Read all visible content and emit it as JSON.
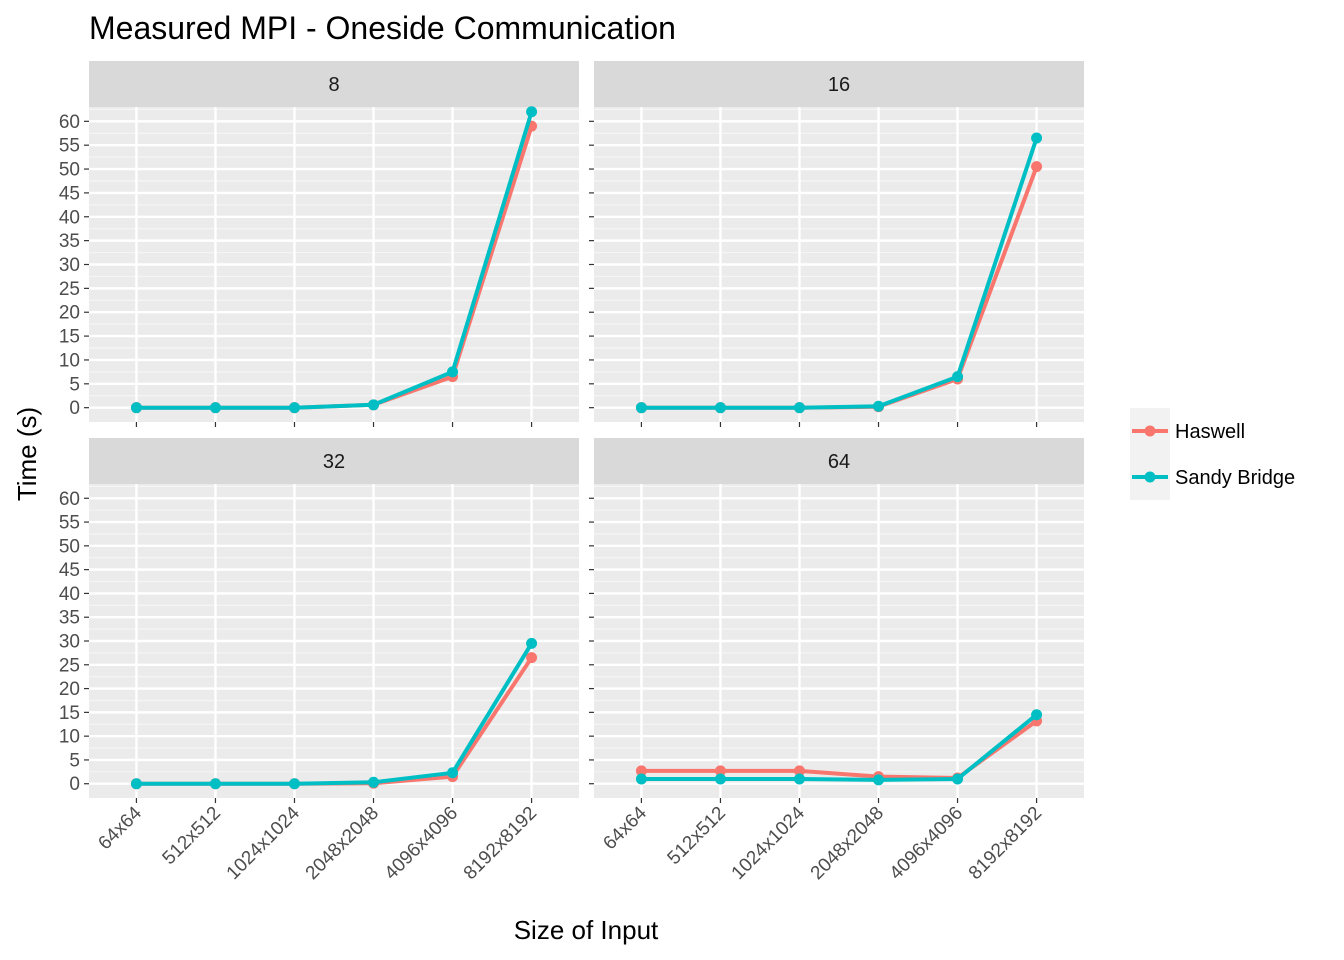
{
  "chart_data": {
    "type": "line",
    "title": "Measured MPI - Oneside Communication",
    "xlabel": "Size of Input",
    "ylabel": "Time (s)",
    "categories": [
      "64x64",
      "512x512",
      "1024x1024",
      "2048x2048",
      "4096x4096",
      "8192x8192"
    ],
    "y_ticks": [
      0,
      5,
      10,
      15,
      20,
      25,
      30,
      35,
      40,
      45,
      50,
      55,
      60
    ],
    "ylim": [
      -3,
      63
    ],
    "grid": true,
    "legend_position": "right",
    "colors": {
      "Haswell": "#F8766D",
      "Sandy Bridge": "#00BFC4"
    },
    "facets": [
      {
        "label": "8",
        "series": [
          {
            "name": "Haswell",
            "values": [
              0.0,
              0.0,
              0.0,
              0.6,
              6.5,
              59.0
            ]
          },
          {
            "name": "Sandy Bridge",
            "values": [
              0.0,
              0.0,
              0.0,
              0.6,
              7.5,
              62.0
            ]
          }
        ]
      },
      {
        "label": "16",
        "series": [
          {
            "name": "Haswell",
            "values": [
              0.0,
              0.0,
              0.0,
              0.2,
              6.0,
              50.5
            ]
          },
          {
            "name": "Sandy Bridge",
            "values": [
              0.0,
              0.0,
              0.0,
              0.3,
              6.5,
              56.5
            ]
          }
        ]
      },
      {
        "label": "32",
        "series": [
          {
            "name": "Haswell",
            "values": [
              0.0,
              0.0,
              0.0,
              0.1,
              1.5,
              26.5
            ]
          },
          {
            "name": "Sandy Bridge",
            "values": [
              0.0,
              0.0,
              0.0,
              0.3,
              2.3,
              29.5
            ]
          }
        ]
      },
      {
        "label": "64",
        "series": [
          {
            "name": "Haswell",
            "values": [
              2.7,
              2.7,
              2.7,
              1.5,
              1.2,
              13.2
            ]
          },
          {
            "name": "Sandy Bridge",
            "values": [
              1.0,
              1.0,
              1.0,
              0.8,
              1.0,
              14.5
            ]
          }
        ]
      }
    ]
  }
}
